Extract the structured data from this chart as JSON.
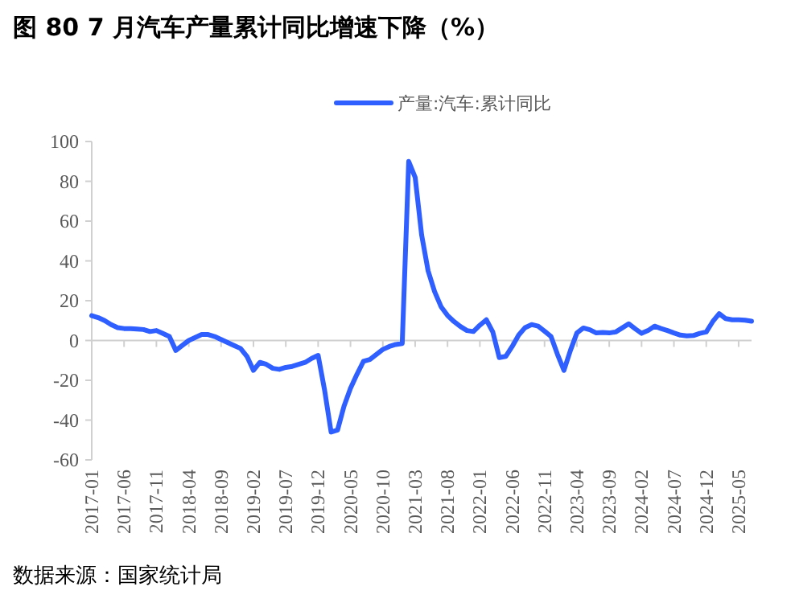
{
  "chart_data": {
    "type": "line",
    "title": "图 80 7 月汽车产量累计同比增速下降（%）",
    "categories": [
      "2017-01",
      null,
      null,
      null,
      null,
      "2017-06",
      null,
      null,
      null,
      null,
      "2017-11",
      null,
      null,
      null,
      null,
      "2018-04",
      null,
      null,
      null,
      null,
      "2018-09",
      null,
      null,
      null,
      null,
      "2019-02",
      null,
      null,
      null,
      null,
      "2019-07",
      null,
      null,
      null,
      null,
      "2019-12",
      null,
      null,
      null,
      null,
      "2020-05",
      null,
      null,
      null,
      null,
      "2020-10",
      null,
      null,
      null,
      null,
      "2021-03",
      null,
      null,
      null,
      null,
      "2021-08",
      null,
      null,
      null,
      null,
      "2022-01",
      null,
      null,
      null,
      null,
      "2022-06",
      null,
      null,
      null,
      null,
      "2022-11",
      null,
      null,
      null,
      null,
      "2023-04",
      null,
      null,
      null,
      null,
      "2023-09",
      null,
      null,
      null,
      null,
      "2024-02",
      null,
      null,
      null,
      null,
      "2024-07",
      null,
      null,
      null,
      null,
      "2024-12",
      null,
      null,
      null,
      null,
      "2025-05",
      null,
      null
    ],
    "series": [
      {
        "name": "产量:汽车:累计同比",
        "color": "#2f5fff",
        "values": [
          12.5,
          11.5,
          10,
          8,
          6.5,
          6,
          6,
          5.8,
          5.5,
          4.5,
          5,
          3.5,
          2,
          -5,
          -2.5,
          0,
          1.5,
          3,
          3,
          2,
          0.5,
          -1,
          -2.5,
          -4,
          -8,
          -15,
          -11,
          -12,
          -14,
          -14.5,
          -13.5,
          -13,
          -12,
          -11,
          -9,
          -7.5,
          -25,
          -46,
          -45,
          -33,
          -24,
          -17,
          -10.5,
          -9.5,
          -7,
          -4.5,
          -3,
          -2,
          -1.5,
          90,
          82,
          53,
          35,
          24.6,
          17,
          12.6,
          9.5,
          7,
          5,
          4.5,
          7.7,
          10.4,
          4.3,
          -8.6,
          -8,
          -3,
          2.7,
          6.5,
          8,
          7.2,
          4.7,
          2,
          -7,
          -15,
          -5,
          3.8,
          6.3,
          5.4,
          3.8,
          4,
          3.8,
          4.3,
          6.3,
          8.4,
          5.9,
          3.6,
          5,
          7.2,
          6,
          5,
          3.8,
          2.7,
          2.3,
          2.5,
          3.6,
          4.3,
          9.5,
          13.5,
          11,
          10.4,
          10.4,
          10.2,
          9.7
        ]
      }
    ],
    "ylim": [
      -60,
      100
    ],
    "yticks": [
      -60,
      -40,
      -20,
      0,
      20,
      40,
      60,
      80,
      100
    ],
    "legend": "top",
    "annotations": [
      "数据来源：国家统计局"
    ]
  }
}
